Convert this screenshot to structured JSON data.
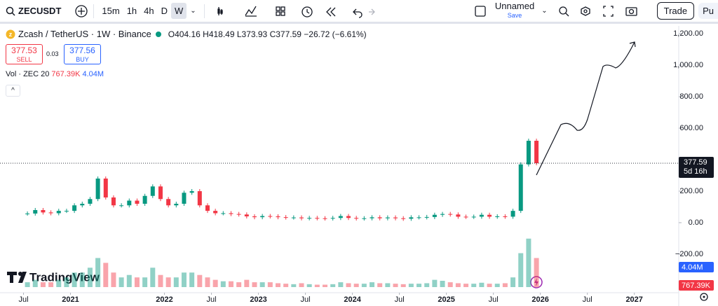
{
  "toolbar": {
    "symbol": "ZECUSDT",
    "intervals": [
      "15m",
      "1h",
      "4h",
      "D",
      "W"
    ],
    "layout_name": "Unnamed",
    "layout_status": "Save",
    "trade": "Trade",
    "publish": "Pu"
  },
  "legend": {
    "title": "Zcash / TetherUS · 1W · Binance",
    "ohlc": "O404.16 H418.49 L373.93 C377.59 −26.72 (−6.61%)",
    "sell_price": "377.53",
    "sell": "SELL",
    "spread": "0.03",
    "buy_price": "377.56",
    "buy": "BUY",
    "volume_label": "Vol · ZEC 20",
    "volume_value": "767.39K",
    "volume_ma": "4.04M"
  },
  "brand": "TradingView",
  "chart_data": {
    "type": "candle-line",
    "x": [
      "2020-07",
      "2020-08",
      "2020-09",
      "2020-10",
      "2020-11",
      "2020-12",
      "2021-01",
      "2021-02",
      "2021-03",
      "2021-04",
      "2021-05",
      "2021-06",
      "2021-07",
      "2021-08",
      "2021-09",
      "2021-10",
      "2021-11",
      "2021-12",
      "2022-01",
      "2022-02",
      "2022-03",
      "2022-04",
      "2022-05",
      "2022-06",
      "2022-07",
      "2022-08",
      "2022-09",
      "2022-10",
      "2022-11",
      "2022-12",
      "2023-01",
      "2023-02",
      "2023-03",
      "2023-04",
      "2023-05",
      "2023-06",
      "2023-07",
      "2023-08",
      "2023-09",
      "2023-10",
      "2023-11",
      "2023-12",
      "2024-01",
      "2024-02",
      "2024-03",
      "2024-04",
      "2024-05",
      "2024-06",
      "2024-07",
      "2024-08",
      "2024-09",
      "2024-10",
      "2024-11",
      "2024-12",
      "2025-01",
      "2025-02",
      "2025-03",
      "2025-04",
      "2025-05",
      "2025-06",
      "2025-07",
      "2025-08",
      "2025-09",
      "2025-10",
      "2025-11",
      "2025-12"
    ],
    "values": [
      58,
      80,
      65,
      60,
      75,
      75,
      110,
      120,
      150,
      280,
      160,
      110,
      110,
      140,
      120,
      170,
      230,
      150,
      110,
      120,
      190,
      200,
      110,
      75,
      60,
      60,
      55,
      52,
      40,
      35,
      42,
      40,
      35,
      33,
      33,
      28,
      30,
      28,
      27,
      30,
      42,
      30,
      27,
      28,
      34,
      28,
      33,
      28,
      25,
      34,
      34,
      36,
      50,
      55,
      52,
      38,
      37,
      38,
      50,
      38,
      40,
      38,
      75,
      370,
      520,
      377.59
    ],
    "volume": [
      1,
      1.5,
      1,
      1,
      1.5,
      2,
      3,
      3,
      4,
      6,
      5,
      3,
      2,
      2.5,
      2,
      2,
      4,
      2.5,
      2,
      2,
      3,
      3,
      2.5,
      2,
      1.5,
      1.2,
      1.2,
      1,
      1.5,
      1,
      1,
      1,
      0.8,
      0.7,
      0.6,
      0.8,
      0.6,
      0.5,
      0.5,
      0.6,
      1,
      0.8,
      0.7,
      0.7,
      1,
      0.8,
      0.8,
      0.7,
      0.6,
      0.7,
      0.7,
      0.8,
      1.5,
      1.3,
      1,
      0.8,
      0.7,
      0.7,
      0.9,
      0.7,
      0.7,
      0.8,
      2,
      7,
      10,
      6
    ],
    "up_color": "#089981",
    "down_color": "#f23645",
    "ylim": [
      -400,
      1240
    ],
    "yticks": [
      {
        "value": -200,
        "label": "−200.00"
      },
      {
        "value": 0,
        "label": "0.00"
      },
      {
        "value": 200,
        "label": "200.00"
      },
      {
        "value": 600,
        "label": "600.00"
      },
      {
        "value": 800,
        "label": "800.00"
      },
      {
        "value": 1000,
        "label": "1,000.00"
      },
      {
        "value": 1200,
        "label": "1,200.00"
      }
    ],
    "xlim": [
      2020.25,
      2027.45
    ],
    "xticks": [
      {
        "value": 2020.5,
        "label": "Jul"
      },
      {
        "value": 2021,
        "label": "2021"
      },
      {
        "value": 2022,
        "label": "2022"
      },
      {
        "value": 2022.5,
        "label": "Jul"
      },
      {
        "value": 2023,
        "label": "2023"
      },
      {
        "value": 2023.5,
        "label": "Jul"
      },
      {
        "value": 2024,
        "label": "2024"
      },
      {
        "value": 2024.5,
        "label": "Jul"
      },
      {
        "value": 2025,
        "label": "2025"
      },
      {
        "value": 2025.5,
        "label": "Jul"
      },
      {
        "value": 2026,
        "label": "2026"
      },
      {
        "value": 2026.5,
        "label": "Jul"
      },
      {
        "value": 2027,
        "label": "2027"
      }
    ],
    "volume_lim": [
      0,
      13
    ],
    "grid": false,
    "last_price_label": "377.59",
    "countdown": "5d 16h",
    "volume_ma_badge": "4.04M",
    "volume_badge": "767.39K"
  }
}
